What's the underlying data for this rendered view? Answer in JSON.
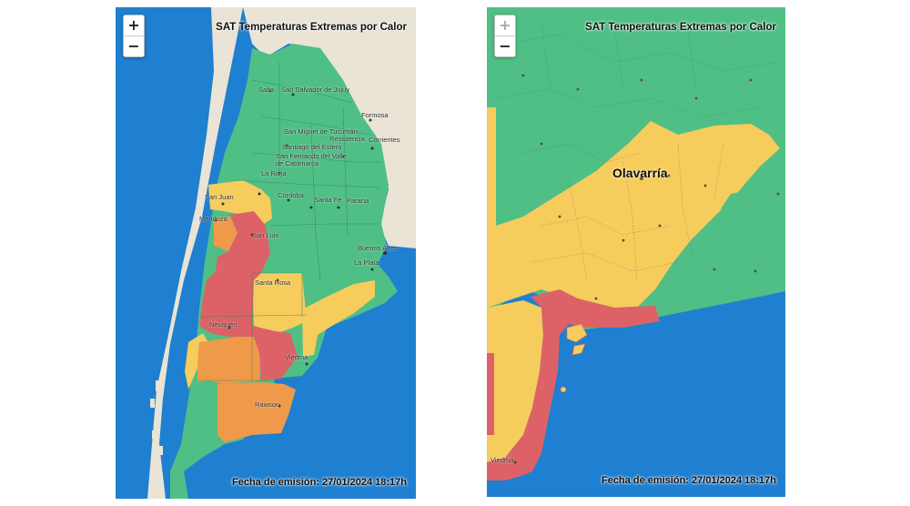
{
  "left_map": {
    "title": "SAT Temperaturas Extremas por Calor",
    "emission": "Fecha de emisión: 27/01/2024 18:17h",
    "zoom_in": "+",
    "zoom_out": "−",
    "places": [
      "Salta",
      "San Salvador de Jujuy",
      "Formosa",
      "San Miguel de Tucumán",
      "Resistencia",
      "Corrientes",
      "Santiago del Estero",
      "San Fernando del Valle de Catamarca",
      "La Rioja",
      "San Juan",
      "Córdoba",
      "Santa Fe",
      "Parana",
      "Mendoza",
      "San Luis",
      "Buenos Aires",
      "La Plata",
      "Santa Rosa",
      "Neuquén",
      "Viedma",
      "Rawson"
    ]
  },
  "right_map": {
    "title": "SAT Temperaturas Extremas por Calor",
    "emission": "Fecha de emisión: 27/01/2024 18:17h",
    "zoom_in": "+",
    "zoom_out": "−",
    "highlight": "Olavarría",
    "places": [
      "Viedma"
    ]
  },
  "alert_colors": {
    "green": "#4fbf86",
    "yellow": "#f6cc5c",
    "orange": "#ef9a4a",
    "red": "#dd6267",
    "ocean": "#1f7fd0",
    "land": "#e9e4d6"
  }
}
